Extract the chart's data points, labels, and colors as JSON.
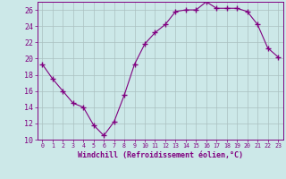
{
  "x": [
    0,
    1,
    2,
    3,
    4,
    5,
    6,
    7,
    8,
    9,
    10,
    11,
    12,
    13,
    14,
    15,
    16,
    17,
    18,
    19,
    20,
    21,
    22,
    23
  ],
  "y": [
    19.3,
    17.5,
    16.0,
    14.5,
    14.0,
    11.8,
    10.5,
    12.2,
    15.5,
    19.3,
    21.8,
    23.2,
    24.2,
    25.8,
    26.0,
    26.0,
    27.0,
    26.2,
    26.2,
    26.2,
    25.8,
    24.2,
    21.3,
    20.2
  ],
  "line_color": "#800080",
  "marker": "+",
  "marker_size": 4,
  "bg_color": "#cce8e8",
  "grid_color": "#aac0c0",
  "xlabel": "Windchill (Refroidissement éolien,°C)",
  "xlabel_color": "#800080",
  "tick_color": "#800080",
  "ylim": [
    10,
    27
  ],
  "xlim": [
    -0.5,
    23.5
  ],
  "yticks": [
    10,
    12,
    14,
    16,
    18,
    20,
    22,
    24,
    26
  ],
  "xticks": [
    0,
    1,
    2,
    3,
    4,
    5,
    6,
    7,
    8,
    9,
    10,
    11,
    12,
    13,
    14,
    15,
    16,
    17,
    18,
    19,
    20,
    21,
    22,
    23
  ],
  "xlabel_fontsize": 6.0,
  "ytick_fontsize": 6.0,
  "xtick_fontsize": 4.8
}
